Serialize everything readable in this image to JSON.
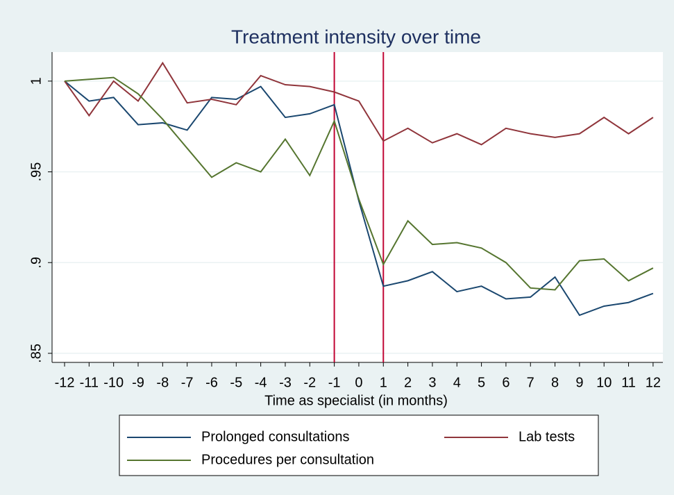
{
  "chart_data": {
    "type": "line",
    "title": "Treatment intensity over time",
    "x_label": "Time as specialist (in months)",
    "x": [
      -12,
      -11,
      -10,
      -9,
      -8,
      -7,
      -6,
      -5,
      -4,
      -3,
      -2,
      -1,
      0,
      1,
      2,
      3,
      4,
      5,
      6,
      7,
      8,
      9,
      10,
      11,
      12
    ],
    "series": [
      {
        "name": "Prolonged consultations",
        "color": "#1a476f",
        "values": [
          1.0,
          0.989,
          0.991,
          0.976,
          0.977,
          0.973,
          0.991,
          0.99,
          0.997,
          0.98,
          0.982,
          0.987,
          0.934,
          0.887,
          0.89,
          0.895,
          0.884,
          0.887,
          0.88,
          0.881,
          0.892,
          0.871,
          0.876,
          0.878,
          0.883
        ]
      },
      {
        "name": "Lab tests",
        "color": "#90353b",
        "values": [
          1.0,
          0.981,
          1.0,
          0.989,
          1.01,
          0.988,
          0.99,
          0.987,
          1.003,
          0.998,
          0.997,
          0.994,
          0.989,
          0.967,
          0.974,
          0.966,
          0.971,
          0.965,
          0.974,
          0.971,
          0.969,
          0.971,
          0.98,
          0.971,
          0.98
        ]
      },
      {
        "name": "Procedures per consultation",
        "color": "#55752f",
        "values": [
          1.0,
          1.001,
          1.002,
          0.993,
          0.979,
          0.963,
          0.947,
          0.955,
          0.95,
          0.968,
          0.948,
          0.978,
          0.935,
          0.899,
          0.923,
          0.91,
          0.911,
          0.908,
          0.9,
          0.886,
          0.885,
          0.901,
          0.902,
          0.89,
          0.897
        ]
      }
    ],
    "vlines": [
      -1,
      1
    ],
    "vline_color": "#c10534",
    "xlim": [
      -12.51,
      12.4
    ],
    "ylim": [
      0.845,
      1.016
    ],
    "xticks": [
      -12,
      -11,
      -10,
      -9,
      -8,
      -7,
      -6,
      -5,
      -4,
      -3,
      -2,
      -1,
      0,
      1,
      2,
      3,
      4,
      5,
      6,
      7,
      8,
      9,
      10,
      11,
      12
    ],
    "yticks": [
      {
        "value": 0.85,
        "label": ".85"
      },
      {
        "value": 0.9,
        "label": ".9"
      },
      {
        "value": 0.95,
        "label": ".95"
      },
      1
    ],
    "grid": true
  }
}
